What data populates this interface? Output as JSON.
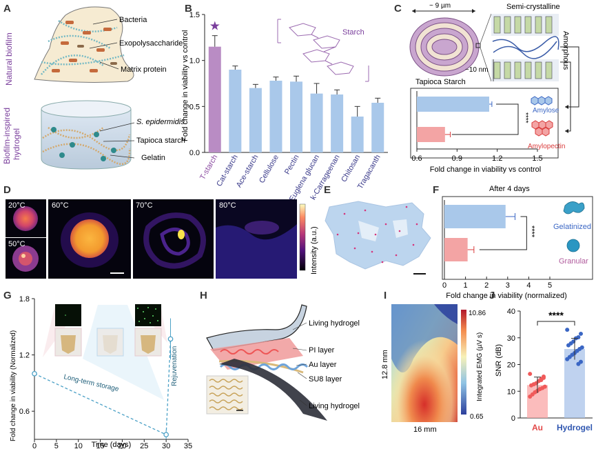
{
  "panel_letters": {
    "a": "A",
    "b": "B",
    "c": "C",
    "d": "D",
    "e": "E",
    "f": "F",
    "g": "G",
    "h": "H",
    "i": "I",
    "j": "J"
  },
  "panel_a": {
    "side_top": "Natural biofilm",
    "side_bottom_1": "Biofilm-inspired",
    "side_bottom_2": "hydrogel",
    "label_bacteria": "Bacteria",
    "label_eps": "Exopolysaccharide",
    "label_matrix": "Matrix protein",
    "label_sepi": "S. epidermidis",
    "label_tapioca": "Tapioca starch",
    "label_gelatin": "Gelatin"
  },
  "panel_c": {
    "size_label": "~ 9 µm",
    "semi": "Semi-crystalline",
    "amorphous": "Amorphous",
    "ten_nm": "~10 nm",
    "tapioca": "Tapioca Starch",
    "amylose": "Amylose",
    "amylopectin": "Amylopectin",
    "sig": "****"
  },
  "panel_d": {
    "t20": "20°C",
    "t50": "50°C",
    "t60": "60°C",
    "t70": "70°C",
    "t80": "80°C",
    "colorbar": "Intensity (a.u.)"
  },
  "panel_f": {
    "title": "After 4 days",
    "gelatinized": "Gelatinized",
    "granular": "Granular",
    "sig": "****"
  },
  "panel_g": {
    "storage": "Long-term storage",
    "rejuvenation": "Rejuvenation"
  },
  "panel_h": {
    "l1": "Living hydrogel",
    "l2": "PI layer",
    "l3": "Au layer",
    "l4": "SU8 layer",
    "l5": "Living hydrogel"
  },
  "panel_i": {
    "ylab": "12.8 mm",
    "xlab": "16 mm",
    "cmax": "10.86",
    "cmin": "0.65",
    "cbar": "Integrated EMG (µV s)"
  },
  "panel_j": {
    "sig": "****"
  },
  "starch_label": "Starch",
  "chart_data": [
    {
      "id": "B",
      "type": "bar",
      "ylabel": "Fold change in viability vs control",
      "ylim": [
        0,
        1.5
      ],
      "yticks": [
        "0.0",
        "0.5",
        "1.0",
        "1.5"
      ],
      "categories": [
        "T-starch",
        "Cat-starch",
        "Ace-starch",
        "Cellulose",
        "Pectin",
        "Euglena glucan",
        "k-Carrageenan",
        "Chitosan",
        "Tragacanth"
      ],
      "values": [
        1.15,
        0.9,
        0.7,
        0.78,
        0.77,
        0.64,
        0.63,
        0.39,
        0.54
      ],
      "errors": [
        0.12,
        0.04,
        0.04,
        0.04,
        0.06,
        0.11,
        0.05,
        0.11,
        0.05
      ],
      "colors": [
        "#b98cc4",
        "#a9c8ea",
        "#a9c8ea",
        "#a9c8ea",
        "#a9c8ea",
        "#a9c8ea",
        "#a9c8ea",
        "#a9c8ea",
        "#a9c8ea"
      ],
      "star": "★"
    },
    {
      "id": "C",
      "type": "bar",
      "orientation": "horizontal",
      "xlabel": "Fold change in viability vs control",
      "xlim": [
        0.6,
        1.5
      ],
      "xticks": [
        "0.6",
        "0.9",
        "1.2",
        "1.5"
      ],
      "categories": [
        "Amylose",
        "Amylopectin"
      ],
      "values": [
        1.14,
        0.81
      ],
      "errors": [
        0.02,
        0.04
      ],
      "colors": [
        "#a9c8ea",
        "#f3a4a4"
      ]
    },
    {
      "id": "F",
      "type": "bar",
      "orientation": "horizontal",
      "xlabel": "Fold change in viability (normalized)",
      "xlim": [
        0,
        5
      ],
      "xticks": [
        "0",
        "1",
        "2",
        "3",
        "4",
        "5"
      ],
      "categories": [
        "Gelatinized",
        "Granular"
      ],
      "values": [
        2.9,
        1.1
      ],
      "errors": [
        0.45,
        0.3
      ],
      "colors": [
        "#a9c8ea",
        "#f3a4a4"
      ]
    },
    {
      "id": "G",
      "type": "line",
      "xlabel": "Time (days)",
      "ylabel": "Fold change in viability (Normalized)",
      "xlim": [
        0,
        35
      ],
      "ylim": [
        0.3,
        1.8
      ],
      "xticks": [
        "0",
        "5",
        "10",
        "15",
        "20",
        "25",
        "30",
        "35"
      ],
      "yticks": [
        "0.6",
        "1.2",
        "1.8"
      ],
      "x": [
        0,
        30,
        31
      ],
      "values": [
        1.0,
        0.35,
        1.37
      ],
      "errors": [
        0,
        0.05,
        0.22
      ]
    },
    {
      "id": "J",
      "type": "scatter",
      "ylabel": "SNR (dB)",
      "ylim": [
        0,
        40
      ],
      "yticks": [
        "0",
        "10",
        "20",
        "30",
        "40"
      ],
      "categories": [
        "Au",
        "Hydrogel"
      ],
      "means": [
        12.3,
        25.8
      ],
      "sds": [
        3,
        4
      ],
      "points": [
        [
          16.5,
          15.5,
          14.2,
          13.8,
          13.0,
          12.6,
          12.2,
          11.7,
          11.2,
          10.8,
          10.2,
          9.6,
          8.8,
          8.0,
          15.0,
          14.6
        ],
        [
          33.0,
          31.5,
          30.2,
          29.8,
          28.6,
          27.9,
          27.2,
          26.4,
          25.8,
          25.1,
          24.3,
          23.6,
          22.8,
          22.0,
          21.0,
          20.2
        ]
      ],
      "colors": [
        "#f05a5a",
        "#3a66c4"
      ]
    }
  ]
}
